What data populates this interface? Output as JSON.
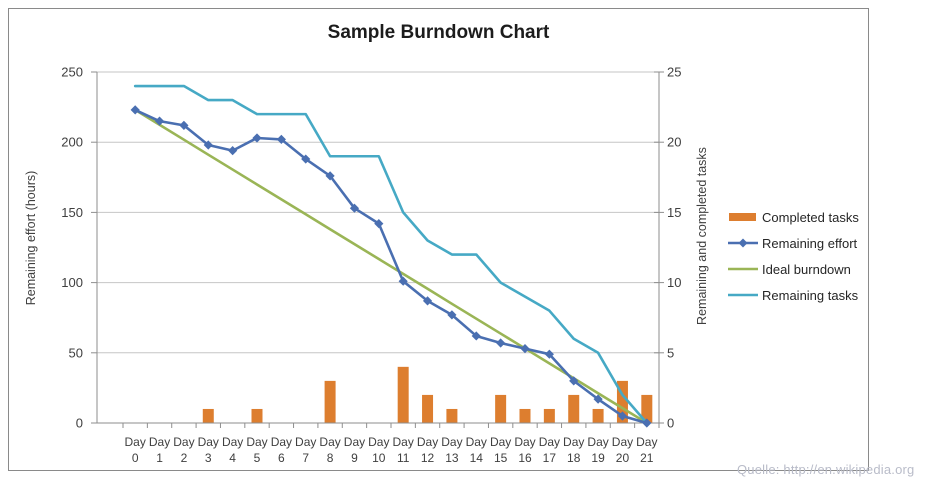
{
  "title": "Sample Burndown Chart",
  "attribution": "Quelle: http://en.wikipedia.org",
  "chart_data": {
    "type": "combo",
    "title": "Sample Burndown Chart",
    "categories": [
      "Day 0",
      "Day 1",
      "Day 2",
      "Day 3",
      "Day 4",
      "Day 5",
      "Day 6",
      "Day 7",
      "Day 8",
      "Day 9",
      "Day 10",
      "Day 11",
      "Day 12",
      "Day 13",
      "Day 14",
      "Day 15",
      "Day 16",
      "Day 17",
      "Day 18",
      "Day 19",
      "Day 20",
      "Day 21"
    ],
    "y_left": {
      "label": "Remaining effort (hours)",
      "min": 0,
      "max": 250,
      "ticks": [
        0,
        50,
        100,
        150,
        200,
        250
      ]
    },
    "y_right": {
      "label": "Remaining and  completed tasks",
      "min": 0,
      "max": 25,
      "ticks": [
        0,
        5,
        10,
        15,
        20,
        25
      ]
    },
    "grid": "horizontal",
    "legend_position": "right",
    "series": [
      {
        "name": "Completed tasks",
        "type": "bar",
        "axis": "right",
        "color": "#DD7E2F",
        "values": [
          0,
          0,
          0,
          1,
          0,
          1,
          0,
          0,
          3,
          0,
          0,
          4,
          2,
          1,
          0,
          2,
          1,
          1,
          2,
          1,
          3,
          2
        ]
      },
      {
        "name": "Remaining effort",
        "type": "line",
        "axis": "left",
        "color": "#4A6FB1",
        "marker": "diamond",
        "values": [
          223,
          215,
          212,
          198,
          194,
          203,
          202,
          188,
          176,
          153,
          142,
          101,
          87,
          77,
          62,
          57,
          53,
          49,
          30,
          17,
          5,
          0
        ]
      },
      {
        "name": "Ideal burndown",
        "type": "line",
        "axis": "left",
        "color": "#9AB556",
        "values": [
          223,
          212.4,
          201.8,
          191.1,
          180.5,
          169.9,
          159.3,
          148.7,
          138,
          127.4,
          116.8,
          106.2,
          95.6,
          84.9,
          74.3,
          63.7,
          53.1,
          42.5,
          31.9,
          21.2,
          10.6,
          0
        ]
      },
      {
        "name": "Remaining tasks",
        "type": "line",
        "axis": "right",
        "color": "#46A9C5",
        "values": [
          24,
          24,
          24,
          23,
          23,
          22,
          22,
          22,
          19,
          19,
          19,
          15,
          13,
          12,
          12,
          10,
          9,
          8,
          6,
          5,
          2,
          0
        ]
      }
    ]
  }
}
